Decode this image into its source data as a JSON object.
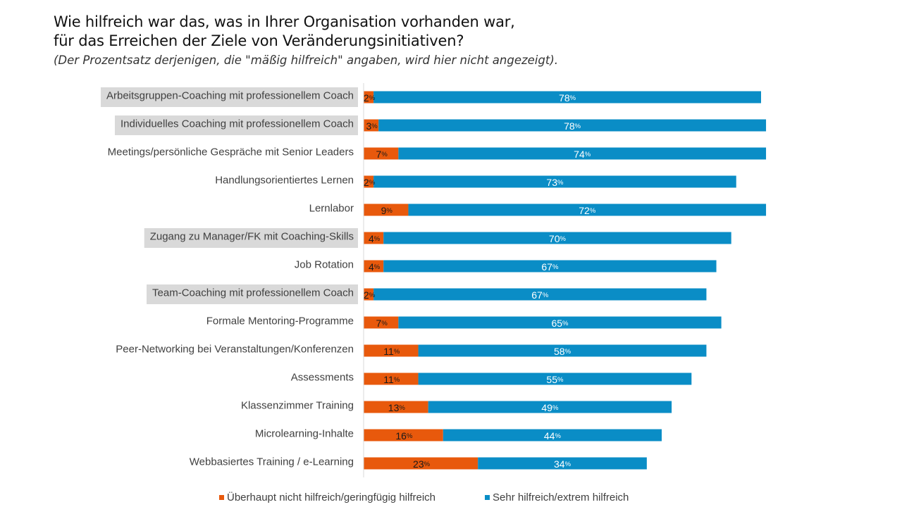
{
  "title_line1": "Wie hilfreich war das, was in Ihrer Organisation vorhanden war,",
  "title_line2": "für das Erreichen der Ziele von Veränderungsinitiativen?",
  "subtitle": "(Der Prozentsatz derjenigen, die \"mäßig hilfreich\" angaben, wird hier nicht angezeigt).",
  "colors": {
    "orange": "#E8590C",
    "blue": "#0A8DC6",
    "highlight": "#D9D9D9",
    "axis": "#D9D9D9"
  },
  "chart_data": {
    "type": "bar",
    "orientation": "horizontal",
    "stacked": true,
    "value_suffix": "%",
    "categories": [
      "Arbeitsgruppen-Coaching mit professionellem Coach",
      "Individuelles Coaching mit professionellem Coach",
      "Meetings/persönliche Gespräche mit Senior Leaders",
      "Handlungsorientiertes Lernen",
      "Lernlabor",
      "Zugang zu Manager/FK mit Coaching-Skills",
      "Job Rotation",
      "Team-Coaching mit professionellem Coach",
      "Formale Mentoring-Programme",
      "Peer-Networking bei Veranstaltungen/Konferenzen",
      "Assessments",
      "Klassenzimmer Training",
      "Microlearning-Inhalte",
      "Webbasiertes Training / e-Learning"
    ],
    "highlighted": [
      true,
      true,
      false,
      false,
      false,
      true,
      false,
      true,
      false,
      false,
      false,
      false,
      false,
      false
    ],
    "series": [
      {
        "name": "Überhaupt nicht hilfreich/geringfügig hilfreich",
        "color": "#E8590C",
        "values": [
          2,
          3,
          7,
          2,
          9,
          4,
          4,
          2,
          7,
          11,
          11,
          13,
          16,
          23
        ]
      },
      {
        "name": "Sehr hilfreich/extrem hilfreich",
        "color": "#0A8DC6",
        "values": [
          78,
          78,
          74,
          73,
          72,
          70,
          67,
          67,
          65,
          58,
          55,
          49,
          44,
          34
        ]
      }
    ],
    "xlim": [
      0,
      80
    ],
    "grid": false,
    "legend_position": "bottom"
  }
}
